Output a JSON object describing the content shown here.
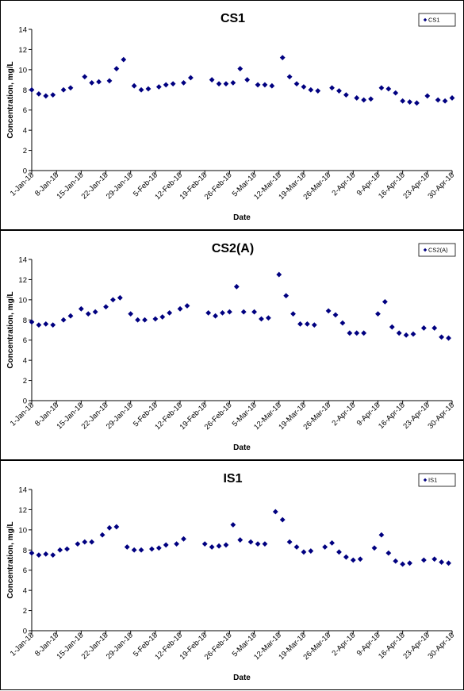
{
  "chart_data": [
    {
      "type": "scatter",
      "title": "CS1",
      "xlabel": "Date",
      "ylabel": "Concentration, mg/L",
      "ylim": [
        0,
        14
      ],
      "yticks": [
        "0",
        "2",
        "4",
        "6",
        "8",
        "10",
        "12",
        "14"
      ],
      "xticks": [
        "1-Jan-18",
        "8-Jan-18",
        "15-Jan-18",
        "22-Jan-18",
        "29-Jan-18",
        "5-Feb-18",
        "12-Feb-18",
        "19-Feb-18",
        "26-Feb-18",
        "5-Mar-18",
        "12-Mar-18",
        "19-Mar-18",
        "26-Mar-18",
        "2-Apr-18",
        "9-Apr-18",
        "16-Apr-18",
        "23-Apr-18",
        "30-Apr-18"
      ],
      "legend_position": "top-right",
      "marker": "diamond",
      "color": "#000080",
      "series": [
        {
          "name": "CS1",
          "points": [
            [
              "1-Jan-18",
              8.0
            ],
            [
              "3-Jan-18",
              7.6
            ],
            [
              "5-Jan-18",
              7.4
            ],
            [
              "7-Jan-18",
              7.5
            ],
            [
              "10-Jan-18",
              8.0
            ],
            [
              "12-Jan-18",
              8.2
            ],
            [
              "16-Jan-18",
              9.3
            ],
            [
              "18-Jan-18",
              8.7
            ],
            [
              "20-Jan-18",
              8.8
            ],
            [
              "23-Jan-18",
              8.9
            ],
            [
              "25-Jan-18",
              10.1
            ],
            [
              "27-Jan-18",
              11.0
            ],
            [
              "30-Jan-18",
              8.4
            ],
            [
              "1-Feb-18",
              8.0
            ],
            [
              "3-Feb-18",
              8.1
            ],
            [
              "6-Feb-18",
              8.3
            ],
            [
              "8-Feb-18",
              8.5
            ],
            [
              "10-Feb-18",
              8.6
            ],
            [
              "13-Feb-18",
              8.7
            ],
            [
              "15-Feb-18",
              9.2
            ],
            [
              "21-Feb-18",
              9.0
            ],
            [
              "23-Feb-18",
              8.6
            ],
            [
              "25-Feb-18",
              8.6
            ],
            [
              "27-Feb-18",
              8.7
            ],
            [
              "1-Mar-18",
              10.1
            ],
            [
              "3-Mar-18",
              9.0
            ],
            [
              "6-Mar-18",
              8.5
            ],
            [
              "8-Mar-18",
              8.5
            ],
            [
              "10-Mar-18",
              8.4
            ],
            [
              "13-Mar-18",
              11.2
            ],
            [
              "15-Mar-18",
              9.3
            ],
            [
              "17-Mar-18",
              8.6
            ],
            [
              "19-Mar-18",
              8.3
            ],
            [
              "21-Mar-18",
              8.0
            ],
            [
              "23-Mar-18",
              7.9
            ],
            [
              "27-Mar-18",
              8.2
            ],
            [
              "29-Mar-18",
              7.9
            ],
            [
              "31-Mar-18",
              7.5
            ],
            [
              "3-Apr-18",
              7.2
            ],
            [
              "5-Apr-18",
              7.0
            ],
            [
              "7-Apr-18",
              7.1
            ],
            [
              "10-Apr-18",
              8.2
            ],
            [
              "12-Apr-18",
              8.1
            ],
            [
              "14-Apr-18",
              7.7
            ],
            [
              "16-Apr-18",
              6.9
            ],
            [
              "18-Apr-18",
              6.8
            ],
            [
              "20-Apr-18",
              6.7
            ],
            [
              "23-Apr-18",
              7.4
            ],
            [
              "26-Apr-18",
              7.0
            ],
            [
              "28-Apr-18",
              6.9
            ],
            [
              "30-Apr-18",
              7.2
            ]
          ]
        }
      ]
    },
    {
      "type": "scatter",
      "title": "CS2(A)",
      "xlabel": "Date",
      "ylabel": "Concentration, mg/L",
      "ylim": [
        0,
        14
      ],
      "yticks": [
        "0",
        "2",
        "4",
        "6",
        "8",
        "10",
        "12",
        "14"
      ],
      "xticks": [
        "1-Jan-18",
        "8-Jan-18",
        "15-Jan-18",
        "22-Jan-18",
        "29-Jan-18",
        "5-Feb-18",
        "12-Feb-18",
        "19-Feb-18",
        "26-Feb-18",
        "5-Mar-18",
        "12-Mar-18",
        "19-Mar-18",
        "26-Mar-18",
        "2-Apr-18",
        "9-Apr-18",
        "16-Apr-18",
        "23-Apr-18",
        "30-Apr-18"
      ],
      "legend_position": "top-right",
      "marker": "diamond",
      "color": "#000080",
      "series": [
        {
          "name": "CS2(A)",
          "points": [
            [
              "1-Jan-18",
              7.8
            ],
            [
              "3-Jan-18",
              7.5
            ],
            [
              "5-Jan-18",
              7.6
            ],
            [
              "7-Jan-18",
              7.5
            ],
            [
              "10-Jan-18",
              8.0
            ],
            [
              "12-Jan-18",
              8.4
            ],
            [
              "15-Jan-18",
              9.1
            ],
            [
              "17-Jan-18",
              8.6
            ],
            [
              "19-Jan-18",
              8.8
            ],
            [
              "22-Jan-18",
              9.3
            ],
            [
              "24-Jan-18",
              10.0
            ],
            [
              "26-Jan-18",
              10.2
            ],
            [
              "29-Jan-18",
              8.6
            ],
            [
              "31-Jan-18",
              8.0
            ],
            [
              "2-Feb-18",
              8.0
            ],
            [
              "5-Feb-18",
              8.1
            ],
            [
              "7-Feb-18",
              8.3
            ],
            [
              "9-Feb-18",
              8.7
            ],
            [
              "12-Feb-18",
              9.1
            ],
            [
              "14-Feb-18",
              9.4
            ],
            [
              "20-Feb-18",
              8.7
            ],
            [
              "22-Feb-18",
              8.4
            ],
            [
              "24-Feb-18",
              8.7
            ],
            [
              "26-Feb-18",
              8.8
            ],
            [
              "28-Feb-18",
              11.3
            ],
            [
              "2-Mar-18",
              8.8
            ],
            [
              "5-Mar-18",
              8.8
            ],
            [
              "7-Mar-18",
              8.1
            ],
            [
              "9-Mar-18",
              8.2
            ],
            [
              "12-Mar-18",
              12.5
            ],
            [
              "14-Mar-18",
              10.4
            ],
            [
              "16-Mar-18",
              8.6
            ],
            [
              "18-Mar-18",
              7.6
            ],
            [
              "20-Mar-18",
              7.6
            ],
            [
              "22-Mar-18",
              7.5
            ],
            [
              "26-Mar-18",
              8.9
            ],
            [
              "28-Mar-18",
              8.5
            ],
            [
              "30-Mar-18",
              7.7
            ],
            [
              "1-Apr-18",
              6.7
            ],
            [
              "3-Apr-18",
              6.7
            ],
            [
              "5-Apr-18",
              6.7
            ],
            [
              "9-Apr-18",
              8.6
            ],
            [
              "11-Apr-18",
              9.8
            ],
            [
              "13-Apr-18",
              7.3
            ],
            [
              "15-Apr-18",
              6.7
            ],
            [
              "17-Apr-18",
              6.5
            ],
            [
              "19-Apr-18",
              6.6
            ],
            [
              "22-Apr-18",
              7.2
            ],
            [
              "25-Apr-18",
              7.2
            ],
            [
              "27-Apr-18",
              6.3
            ],
            [
              "29-Apr-18",
              6.2
            ]
          ]
        }
      ]
    },
    {
      "type": "scatter",
      "title": "IS1",
      "xlabel": "Date",
      "ylabel": "Concentration, mg/L",
      "ylim": [
        0,
        14
      ],
      "yticks": [
        "0",
        "2",
        "4",
        "6",
        "8",
        "10",
        "12",
        "14"
      ],
      "xticks": [
        "1-Jan-18",
        "8-Jan-18",
        "15-Jan-18",
        "22-Jan-18",
        "29-Jan-18",
        "5-Feb-18",
        "12-Feb-18",
        "19-Feb-18",
        "26-Feb-18",
        "5-Mar-18",
        "12-Mar-18",
        "19-Mar-18",
        "26-Mar-18",
        "2-Apr-18",
        "9-Apr-18",
        "16-Apr-18",
        "23-Apr-18",
        "30-Apr-18"
      ],
      "legend_position": "top-right",
      "marker": "diamond",
      "color": "#000080",
      "series": [
        {
          "name": "IS1",
          "points": [
            [
              "1-Jan-18",
              7.7
            ],
            [
              "3-Jan-18",
              7.5
            ],
            [
              "5-Jan-18",
              7.6
            ],
            [
              "7-Jan-18",
              7.5
            ],
            [
              "9-Jan-18",
              8.0
            ],
            [
              "11-Jan-18",
              8.1
            ],
            [
              "14-Jan-18",
              8.6
            ],
            [
              "16-Jan-18",
              8.8
            ],
            [
              "18-Jan-18",
              8.8
            ],
            [
              "21-Jan-18",
              9.5
            ],
            [
              "23-Jan-18",
              10.2
            ],
            [
              "25-Jan-18",
              10.3
            ],
            [
              "28-Jan-18",
              8.3
            ],
            [
              "30-Jan-18",
              8.0
            ],
            [
              "1-Feb-18",
              8.0
            ],
            [
              "4-Feb-18",
              8.1
            ],
            [
              "6-Feb-18",
              8.2
            ],
            [
              "8-Feb-18",
              8.5
            ],
            [
              "11-Feb-18",
              8.6
            ],
            [
              "13-Feb-18",
              9.1
            ],
            [
              "19-Feb-18",
              8.6
            ],
            [
              "21-Feb-18",
              8.3
            ],
            [
              "23-Feb-18",
              8.4
            ],
            [
              "25-Feb-18",
              8.5
            ],
            [
              "27-Feb-18",
              10.5
            ],
            [
              "1-Mar-18",
              9.0
            ],
            [
              "4-Mar-18",
              8.8
            ],
            [
              "6-Mar-18",
              8.6
            ],
            [
              "8-Mar-18",
              8.6
            ],
            [
              "11-Mar-18",
              11.8
            ],
            [
              "13-Mar-18",
              11.0
            ],
            [
              "15-Mar-18",
              8.8
            ],
            [
              "17-Mar-18",
              8.3
            ],
            [
              "19-Mar-18",
              7.8
            ],
            [
              "21-Mar-18",
              7.9
            ],
            [
              "25-Mar-18",
              8.3
            ],
            [
              "27-Mar-18",
              8.7
            ],
            [
              "29-Mar-18",
              7.8
            ],
            [
              "31-Mar-18",
              7.3
            ],
            [
              "2-Apr-18",
              7.0
            ],
            [
              "4-Apr-18",
              7.1
            ],
            [
              "8-Apr-18",
              8.2
            ],
            [
              "10-Apr-18",
              9.5
            ],
            [
              "12-Apr-18",
              7.7
            ],
            [
              "14-Apr-18",
              6.9
            ],
            [
              "16-Apr-18",
              6.6
            ],
            [
              "18-Apr-18",
              6.7
            ],
            [
              "22-Apr-18",
              7.0
            ],
            [
              "25-Apr-18",
              7.1
            ],
            [
              "27-Apr-18",
              6.8
            ],
            [
              "29-Apr-18",
              6.7
            ]
          ]
        }
      ]
    }
  ]
}
